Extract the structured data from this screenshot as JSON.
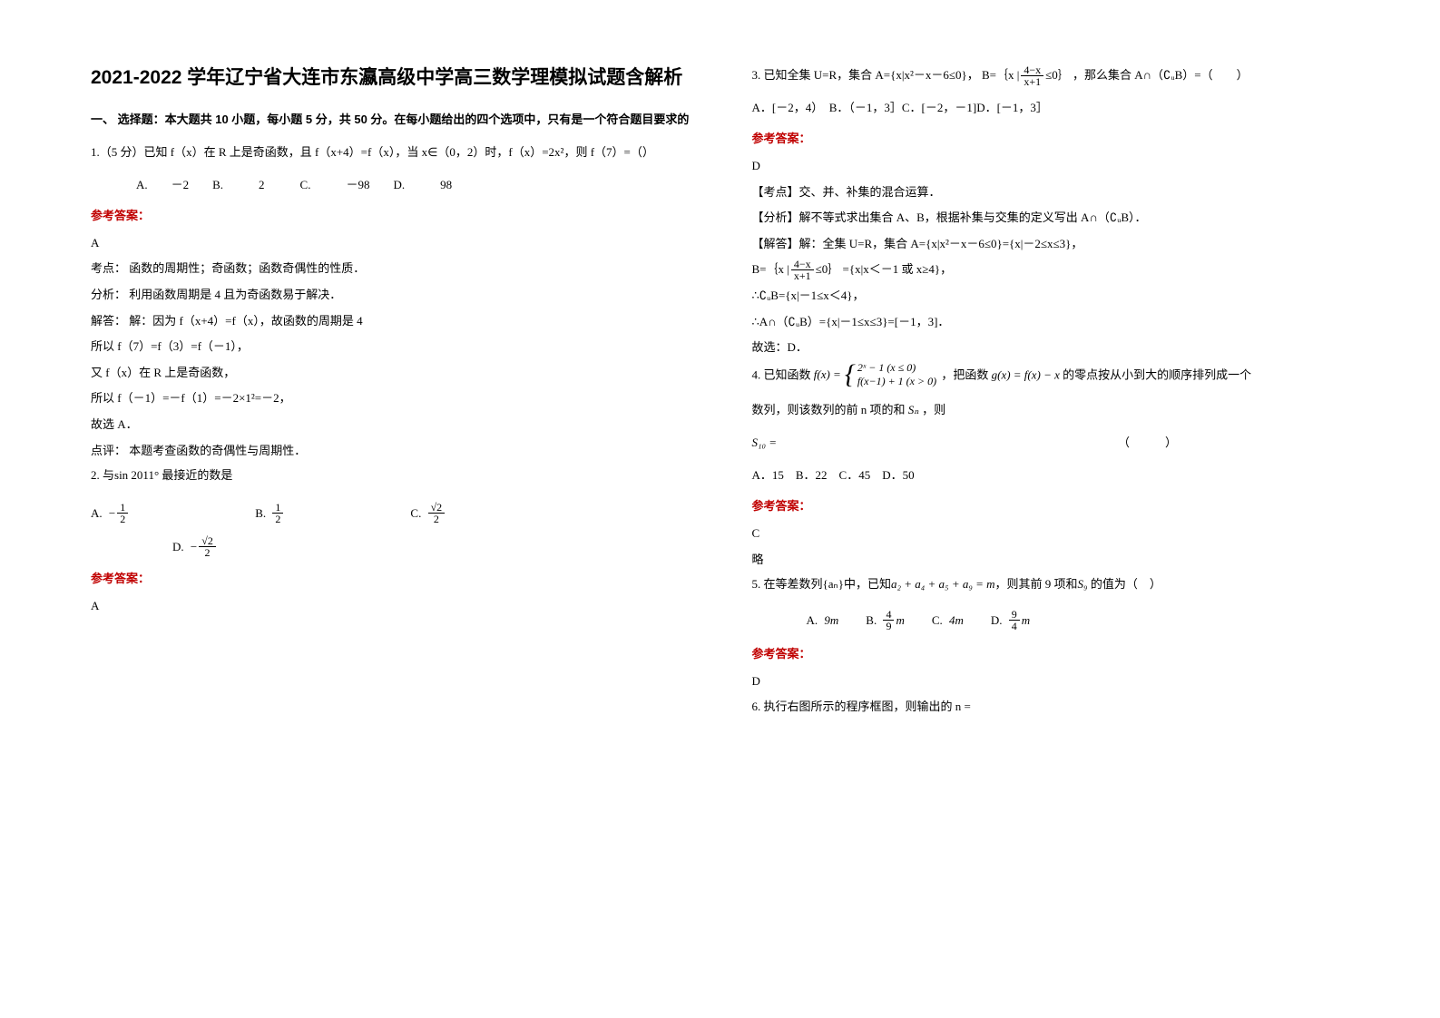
{
  "title": "2021-2022 学年辽宁省大连市东瀛高级中学高三数学理模拟试题含解析",
  "section1_header": "一、 选择题：本大题共 10 小题，每小题 5 分，共 50 分。在每小题给出的四个选项中，只有是一个符合题目要求的",
  "ans_label": "参考答案：",
  "colors": {
    "ans_label": "#c00000",
    "text": "#000000",
    "bg": "#ffffff"
  },
  "q1": {
    "stem": "1.（5 分）已知 f（x）在 R 上是奇函数，且 f（x+4）=f（x），当 x∈（0，2）时，f（x）=2x²，则 f（7）=（）",
    "opts": "A.　　－2　　B.　　　2　　　C.　　　－98　　D.　　　98",
    "ans": "A",
    "sol": [
      "考点： 函数的周期性；奇函数；函数奇偶性的性质．",
      "分析： 利用函数周期是 4 且为奇函数易于解决．",
      "解答： 解：因为 f（x+4）=f（x），故函数的周期是 4",
      "所以 f（7）=f（3）=f（－1），",
      "又 f（x）在 R 上是奇函数，",
      "所以 f（－1）=－f（1）=－2×1²=－2，",
      "故选 A．",
      "点评： 本题考查函数的奇偶性与周期性．"
    ]
  },
  "q2": {
    "stem_prefix": "2. 与",
    "expr": "sin 2011°",
    "stem_suffix": " 最接近的数是",
    "A_label": "A.",
    "A_num": "1",
    "A_den": "2",
    "A_neg": "−",
    "B_label": "B.",
    "B_num": "1",
    "B_den": "2",
    "C_label": "C.",
    "C_num": "√2",
    "C_den": "2",
    "D_label": "D.",
    "D_num": "√2",
    "D_den": "2",
    "D_neg": "−",
    "ans": "A"
  },
  "q3": {
    "stem_a": "3. 已知全集 U=R，集合 A={x|x²－x－6≤0}，",
    "B_pre": "B=｛x |",
    "B_num": "4−x",
    "B_den": "x+1",
    "B_post": "≤0｝",
    "stem_b": "，那么集合 A∩（∁ᵤB）=（　　）",
    "opts": "A．[－2，4）　B．（－1，3］C．[－2，－1]D．[－1，3］",
    "ans": "D",
    "sol": [
      "【考点】交、并、补集的混合运算．",
      "【分析】解不等式求出集合 A、B，根据补集与交集的定义写出 A∩（∁ᵤB）．",
      "【解答】解：全集 U=R，集合 A={x|x²－x－6≤0}={x|－2≤x≤3}，"
    ],
    "line_B_pre": "B=｛x |",
    "line_B_post": "≤0｝",
    "line_B_tail": "={x|x＜－1 或 x≥4}，",
    "line_cu": "∴∁ᵤB={x|－1≤x＜4}，",
    "line_inter": "∴A∩（∁ᵤB）={x|－1≤x≤3}=[－1，3]．",
    "line_choose": "故选：D．"
  },
  "q4": {
    "stem_a": "4. 已知函数",
    "fx": "f(x) =",
    "case1": "2ˣ − 1 (x ≤ 0)",
    "case2": "f(x−1) + 1 (x > 0)",
    "stem_b": "，把函数",
    "gx": "g(x) = f(x) − x",
    "stem_c": " 的零点按从小到大的顺序排列成一个",
    "line2_a": "数列，则该数列的前 n 项的和",
    "Sn": "Sₙ",
    "line2_b": "，则",
    "S10": "S₁₀ =",
    "paren": "（　　　）",
    "opts": "A．15　B．22　C．45　D．50",
    "ans": "C",
    "note": "略"
  },
  "q5": {
    "stem_a": "5. 在等差数列",
    "an": "{aₙ}",
    "stem_b": "中，已知",
    "sum": "a₂ + a₄ + a₅ + a₉ = m",
    "stem_c": "，则其前 9 项和",
    "S9": "S₉",
    "stem_d": " 的值为（　）",
    "A_label": "A.",
    "A_val": "9m",
    "B_label": "B.",
    "B_num": "4",
    "B_den": "9",
    "B_tail": "m",
    "C_label": "C.",
    "C_val": "4m",
    "D_label": "D.",
    "D_num": "9",
    "D_den": "4",
    "D_tail": "m",
    "ans": "D"
  },
  "q6": {
    "stem": "6. 执行右图所示的程序框图，则输出的 n ="
  }
}
